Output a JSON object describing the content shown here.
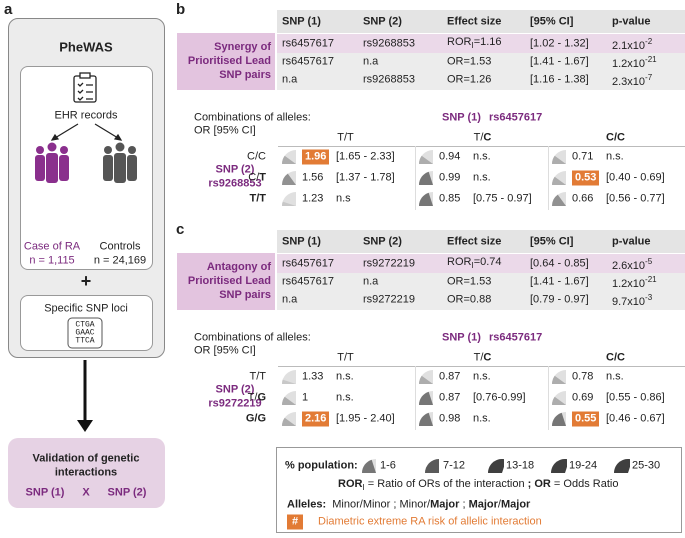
{
  "panel_labels": [
    "a",
    "b",
    "c"
  ],
  "phewas": {
    "title": "PheWAS",
    "ehr": "EHR records",
    "case": {
      "label": "Case of RA",
      "n": "n = 1,115"
    },
    "controls": {
      "label": "Controls",
      "n": "n = 24,169"
    },
    "plus": "+",
    "loci": "Specific SNP loci",
    "sequence": [
      "CTGA",
      "GAAC",
      "TTCA"
    ]
  },
  "validation": {
    "title": [
      "Validation of genetic",
      "interactions"
    ],
    "snp1": "SNP (1)",
    "x": "X",
    "snp2": "SNP (2)"
  },
  "panels": [
    {
      "table": {
        "header": [
          "SNP (1)",
          "SNP (2)",
          "Effect size",
          "[95% CI]",
          "p-value"
        ],
        "group_label": "Synergy of Prioritised Lead SNP pairs",
        "rows": [
          [
            "rs6457617",
            "rs9268853",
            [
              {
                "text": "ROR"
              },
              {
                "text": "I",
                "style": "sub"
              },
              {
                "text": "=1.16"
              }
            ],
            "[1.02 - 1.32]",
            [
              "2.1x10",
              {
                "text": "-2",
                "style": "sup"
              }
            ]
          ],
          [
            "rs6457617",
            "n.a",
            "OR=1.53",
            "[1.41 - 1.67]",
            [
              "1.2x10",
              {
                "text": "-21",
                "style": "sup"
              }
            ]
          ],
          [
            "n.a",
            "rs9268853",
            "OR=1.26",
            "[1.16 - 1.38]",
            [
              "2.3x10",
              {
                "text": "-7",
                "style": "sup"
              }
            ]
          ]
        ]
      },
      "combos": {
        "title": [
          "Combinations of alleles:",
          "OR [95% CI]"
        ],
        "snp1": "SNP (1)",
        "snp1_id": "rs6457617",
        "columns": [
          "T/T",
          [
            "T/",
            {
              "text": "C",
              "style": "bold"
            }
          ],
          [
            {
              "text": "C/C",
              "style": "bold"
            }
          ]
        ],
        "snp2": "SNP (2)",
        "snp2_id": "rs9268853",
        "rows": [
          {
            "label": "C/C",
            "cells": [
              {
                "or": 1.96,
                "ci": "[1.65 - 2.33]",
                "highlight": true,
                "population": 1
              },
              {
                "or": 0.94,
                "ci": "n.s.",
                "population": 1
              },
              {
                "or": 0.71,
                "ci": "n.s.",
                "population": 1
              }
            ]
          },
          {
            "label": [
              "C/",
              {
                "text": "T",
                "style": "bold"
              }
            ],
            "cells": [
              {
                "or": 1.56,
                "ci": "[1.37 - 1.78]",
                "population": 2
              },
              {
                "or": 0.99,
                "ci": "n.s.",
                "population": 3
              },
              {
                "or": 0.53,
                "ci": "[0.40 - 0.69]",
                "highlight": true,
                "population": 1
              }
            ]
          },
          {
            "label": [
              {
                "text": "T/T",
                "style": "bold"
              }
            ],
            "cells": [
              {
                "or": 1.23,
                "ci": "n.s",
                "population": 0
              },
              {
                "or": 0.85,
                "ci": "[0.75 - 0.97]",
                "population": 3
              },
              {
                "or": 0.66,
                "ci": "[0.56 - 0.77]",
                "population": 2
              }
            ]
          }
        ]
      }
    },
    {
      "table": {
        "header": [
          "SNP (1)",
          "SNP (2)",
          "Effect size",
          "[95% CI]",
          "p-value"
        ],
        "group_label": "Antagony of Prioritised Lead SNP pairs",
        "rows": [
          [
            "rs6457617",
            "rs9272219",
            [
              {
                "text": "ROR"
              },
              {
                "text": "I",
                "style": "sub"
              },
              {
                "text": "=0.74"
              }
            ],
            "[0.64 - 0.85]",
            [
              "2.6x10",
              {
                "text": "-5",
                "style": "sup"
              }
            ]
          ],
          [
            "rs6457617",
            "n.a",
            "OR=1.53",
            "[1.41 - 1.67]",
            [
              "1.2x10",
              {
                "text": "-21",
                "style": "sup"
              }
            ]
          ],
          [
            "n.a",
            "rs9272219",
            "OR=0.88",
            "[0.79 - 0.97]",
            [
              "9.7x10",
              {
                "text": "-3",
                "style": "sup"
              }
            ]
          ]
        ]
      },
      "combos": {
        "title": [
          "Combinations of alleles:",
          "OR [95% CI]"
        ],
        "snp1": "SNP (1)",
        "snp1_id": "rs6457617",
        "columns": [
          "T/T",
          [
            "T/",
            {
              "text": "C",
              "style": "bold"
            }
          ],
          [
            {
              "text": "C/C",
              "style": "bold"
            }
          ]
        ],
        "snp2": "SNP (2)",
        "snp2_id": "rs9272219",
        "rows": [
          {
            "label": "T/T",
            "cells": [
              {
                "or": 1.33,
                "ci": "n.s.",
                "population": 0
              },
              {
                "or": 0.87,
                "ci": "n.s.",
                "population": 1
              },
              {
                "or": 0.78,
                "ci": "n.s.",
                "population": 1
              }
            ]
          },
          {
            "label": [
              "T/",
              {
                "text": "G",
                "style": "bold"
              }
            ],
            "cells": [
              {
                "or": 1,
                "ci": "n.s.",
                "population": 1
              },
              {
                "or": 0.87,
                "ci": "[0.76-0.99]",
                "population": 3
              },
              {
                "or": 0.69,
                "ci": "[0.55 - 0.86]",
                "population": 1
              }
            ]
          },
          {
            "label": [
              {
                "text": "G/G",
                "style": "bold"
              }
            ],
            "cells": [
              {
                "or": 2.16,
                "ci": "[1.95 - 2.40]",
                "highlight": true,
                "population": 1
              },
              {
                "or": 0.98,
                "ci": "n.s.",
                "population": 3
              },
              {
                "or": 0.55,
                "ci": "[0.46 - 0.67]",
                "highlight": true,
                "population": 3
              }
            ]
          }
        ]
      }
    }
  ],
  "legend": {
    "population_title": "% population:",
    "population_classes": [
      "1-6",
      "7-12",
      "13-18",
      "19-24",
      "25-30"
    ],
    "abbreviations": [
      {
        "text": "ROR",
        "style": "bold"
      },
      {
        "text": "I",
        "style": "sub"
      },
      {
        "text": " = Ratio of ORs of the interaction "
      },
      {
        "text": ";",
        "style": "bold"
      },
      {
        "text": " "
      },
      {
        "text": "OR",
        "style": "bold"
      },
      {
        "text": " = Odds Ratio"
      }
    ],
    "alleles": [
      {
        "text": "Alleles:",
        "style": "bold"
      },
      {
        "text": "  Minor/Minor ; Minor/"
      },
      {
        "text": "Major",
        "style": "bold"
      },
      {
        "text": " ; "
      },
      {
        "text": "Major",
        "style": "bold"
      },
      {
        "text": "/"
      },
      {
        "text": "Major",
        "style": "bold"
      }
    ],
    "marker": "#",
    "marker_text": "Diametric extreme RA risk of allelic interaction"
  }
}
